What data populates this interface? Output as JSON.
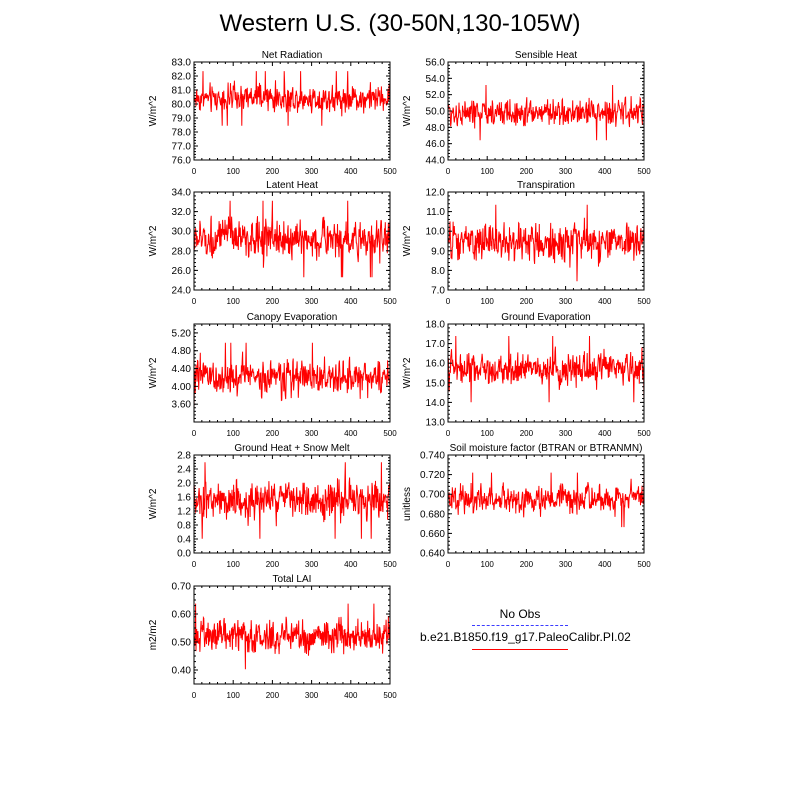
{
  "title": "Western U.S. (30-50N,130-105W)",
  "colors": {
    "model": "#ff0000",
    "obs": "#3b3bff",
    "axis": "#000000"
  },
  "legend": {
    "obs_label": "No Obs",
    "model_label": "b.e21.B1850.f19_g17.PaleoCalibr.PI.02"
  },
  "chart_data": [
    {
      "type": "line",
      "title": "Net Radiation",
      "xlabel": "",
      "ylabel": "W/m^2",
      "xlim": [
        0,
        500
      ],
      "ylim": [
        76.0,
        83.0
      ],
      "xticks": [
        0,
        100,
        200,
        300,
        400,
        500
      ],
      "yticks": [
        76.0,
        77.0,
        78.0,
        79.0,
        80.0,
        81.0,
        82.0,
        83.0
      ],
      "ydec": 1,
      "series": [
        {
          "mean": 80.4,
          "sd": 0.75,
          "min": 77.0,
          "max": 82.5
        }
      ]
    },
    {
      "type": "line",
      "title": "Sensible Heat",
      "xlabel": "",
      "ylabel": "W/m^2",
      "xlim": [
        0,
        500
      ],
      "ylim": [
        44.0,
        56.0
      ],
      "xticks": [
        0,
        100,
        200,
        300,
        400,
        500
      ],
      "yticks": [
        44.0,
        46.0,
        48.0,
        50.0,
        52.0,
        54.0,
        56.0
      ],
      "ydec": 1,
      "series": [
        {
          "mean": 49.8,
          "sd": 1.3,
          "min": 45.5,
          "max": 54.2
        }
      ]
    },
    {
      "type": "line",
      "title": "Latent Heat",
      "xlabel": "",
      "ylabel": "W/m^2",
      "xlim": [
        0,
        500
      ],
      "ylim": [
        24.0,
        34.0
      ],
      "xticks": [
        0,
        100,
        200,
        300,
        400,
        500
      ],
      "yticks": [
        24.0,
        26.0,
        28.0,
        30.0,
        32.0,
        34.0
      ],
      "ydec": 1,
      "series": [
        {
          "mean": 29.2,
          "sd": 1.5,
          "min": 25.3,
          "max": 33.3
        }
      ]
    },
    {
      "type": "line",
      "title": "Transpiration",
      "xlabel": "",
      "ylabel": "W/m^2",
      "xlim": [
        0,
        500
      ],
      "ylim": [
        7.0,
        12.0
      ],
      "xticks": [
        0,
        100,
        200,
        300,
        400,
        500
      ],
      "yticks": [
        7.0,
        8.0,
        9.0,
        10.0,
        11.0,
        12.0
      ],
      "ydec": 1,
      "series": [
        {
          "mean": 9.4,
          "sd": 0.75,
          "min": 7.4,
          "max": 11.6
        }
      ]
    },
    {
      "type": "line",
      "title": "Canopy Evaporation",
      "xlabel": "",
      "ylabel": "W/m^2",
      "xlim": [
        0,
        500
      ],
      "ylim": [
        3.2,
        5.4
      ],
      "xticks": [
        0,
        100,
        200,
        300,
        400,
        500
      ],
      "yticks": [
        3.6,
        4.0,
        4.4,
        4.8,
        5.2
      ],
      "ydec": 2,
      "series": [
        {
          "mean": 4.2,
          "sd": 0.3,
          "min": 3.45,
          "max": 5.0
        }
      ]
    },
    {
      "type": "line",
      "title": "Ground Evaporation",
      "xlabel": "",
      "ylabel": "W/m^2",
      "xlim": [
        0,
        500
      ],
      "ylim": [
        13.0,
        18.0
      ],
      "xticks": [
        0,
        100,
        200,
        300,
        400,
        500
      ],
      "yticks": [
        13.0,
        14.0,
        15.0,
        16.0,
        17.0,
        18.0
      ],
      "ydec": 1,
      "series": [
        {
          "mean": 15.7,
          "sd": 0.65,
          "min": 13.8,
          "max": 17.5
        }
      ]
    },
    {
      "type": "line",
      "title": "Ground Heat + Snow Melt",
      "xlabel": "",
      "ylabel": "W/m^2",
      "xlim": [
        0,
        500
      ],
      "ylim": [
        0.0,
        2.8
      ],
      "xticks": [
        0,
        100,
        200,
        300,
        400,
        500
      ],
      "yticks": [
        0.0,
        0.4,
        0.8,
        1.2,
        1.6,
        2.0,
        2.4,
        2.8
      ],
      "ydec": 1,
      "series": [
        {
          "mean": 1.5,
          "sd": 0.42,
          "min": 0.2,
          "max": 2.6
        }
      ]
    },
    {
      "type": "line",
      "title": "Soil moisture factor (BTRAN or BTRANMN)",
      "xlabel": "",
      "ylabel": "unitless",
      "xlim": [
        0,
        500
      ],
      "ylim": [
        0.64,
        0.74
      ],
      "xticks": [
        0,
        100,
        200,
        300,
        400,
        500
      ],
      "yticks": [
        0.64,
        0.66,
        0.68,
        0.7,
        0.72,
        0.74
      ],
      "ydec": 3,
      "series": [
        {
          "mean": 0.695,
          "sd": 0.011,
          "min": 0.665,
          "max": 0.722
        }
      ]
    },
    {
      "type": "line",
      "title": "Total LAI",
      "xlabel": "",
      "ylabel": "m2/m2",
      "xlim": [
        0,
        500
      ],
      "ylim": [
        0.35,
        0.7
      ],
      "xticks": [
        0,
        100,
        200,
        300,
        400,
        500
      ],
      "yticks": [
        0.4,
        0.5,
        0.6,
        0.7
      ],
      "ydec": 2,
      "series": [
        {
          "mean": 0.52,
          "sd": 0.045,
          "min": 0.4,
          "max": 0.69
        }
      ]
    }
  ]
}
